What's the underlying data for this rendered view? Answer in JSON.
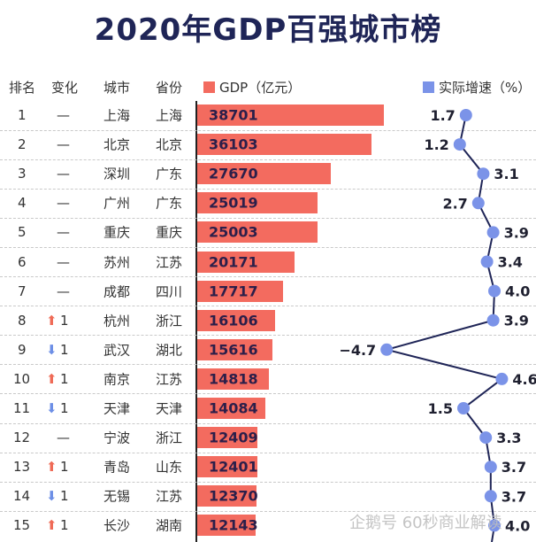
{
  "title": "2020年GDP百强城市榜",
  "headers": {
    "rank": "排名",
    "change": "变化",
    "city": "城市",
    "province": "省份",
    "gdp": "GDP（亿元）",
    "growth": "实际增速（%）"
  },
  "colors": {
    "bar": "#f36b5f",
    "dot": "#7b93e8",
    "up": "#ef6b57",
    "down": "#6d8fe6",
    "title": "#1f2557"
  },
  "watermark": "企鹅号 60秒商业解读",
  "chart_data": {
    "type": "bar",
    "title": "2020年GDP百强城市榜",
    "series": [
      {
        "name": "GDP（亿元）",
        "values": [
          38701,
          36103,
          27670,
          25019,
          25003,
          20171,
          17717,
          16106,
          15616,
          14818,
          14084,
          12409,
          12401,
          12370,
          12143
        ]
      },
      {
        "name": "实际增速（%）",
        "type": "line",
        "values": [
          1.7,
          1.2,
          3.1,
          2.7,
          3.9,
          3.4,
          4.0,
          3.9,
          -4.7,
          4.6,
          1.5,
          3.3,
          3.7,
          3.7,
          4.0
        ]
      }
    ],
    "rows": [
      {
        "rank": "1",
        "change": "—",
        "dir": "none",
        "city": "上海",
        "province": "上海",
        "gdp": "38701",
        "growth": "1.7"
      },
      {
        "rank": "2",
        "change": "—",
        "dir": "none",
        "city": "北京",
        "province": "北京",
        "gdp": "36103",
        "growth": "1.2"
      },
      {
        "rank": "3",
        "change": "—",
        "dir": "none",
        "city": "深圳",
        "province": "广东",
        "gdp": "27670",
        "growth": "3.1"
      },
      {
        "rank": "4",
        "change": "—",
        "dir": "none",
        "city": "广州",
        "province": "广东",
        "gdp": "25019",
        "growth": "2.7"
      },
      {
        "rank": "5",
        "change": "—",
        "dir": "none",
        "city": "重庆",
        "province": "重庆",
        "gdp": "25003",
        "growth": "3.9"
      },
      {
        "rank": "6",
        "change": "—",
        "dir": "none",
        "city": "苏州",
        "province": "江苏",
        "gdp": "20171",
        "growth": "3.4"
      },
      {
        "rank": "7",
        "change": "—",
        "dir": "none",
        "city": "成都",
        "province": "四川",
        "gdp": "17717",
        "growth": "4.0"
      },
      {
        "rank": "8",
        "change": "1",
        "dir": "up",
        "city": "杭州",
        "province": "浙江",
        "gdp": "16106",
        "growth": "3.9"
      },
      {
        "rank": "9",
        "change": "1",
        "dir": "down",
        "city": "武汉",
        "province": "湖北",
        "gdp": "15616",
        "growth": "−4.7"
      },
      {
        "rank": "10",
        "change": "1",
        "dir": "up",
        "city": "南京",
        "province": "江苏",
        "gdp": "14818",
        "growth": "4.6"
      },
      {
        "rank": "11",
        "change": "1",
        "dir": "down",
        "city": "天津",
        "province": "天津",
        "gdp": "14084",
        "growth": "1.5"
      },
      {
        "rank": "12",
        "change": "—",
        "dir": "none",
        "city": "宁波",
        "province": "浙江",
        "gdp": "12409",
        "growth": "3.3"
      },
      {
        "rank": "13",
        "change": "1",
        "dir": "up",
        "city": "青岛",
        "province": "山东",
        "gdp": "12401",
        "growth": "3.7"
      },
      {
        "rank": "14",
        "change": "1",
        "dir": "down",
        "city": "无锡",
        "province": "江苏",
        "gdp": "12370",
        "growth": "3.7"
      },
      {
        "rank": "15",
        "change": "1",
        "dir": "up",
        "city": "长沙",
        "province": "湖南",
        "gdp": "12143",
        "growth": "4.0"
      }
    ]
  }
}
